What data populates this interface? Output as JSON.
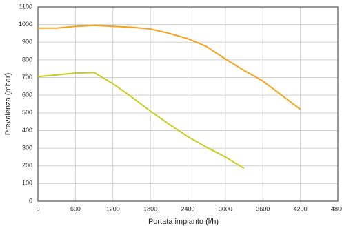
{
  "chart_data": {
    "type": "line",
    "x_label": "Portata impianto (l/h)",
    "y_label": "Prevalenza (mbar)",
    "x": [
      0,
      300,
      600,
      900,
      1200,
      1500,
      1800,
      2100,
      2400,
      2700,
      3000,
      3300,
      3600,
      3900,
      4200
    ],
    "series": [
      {
        "color": "#f7a21b",
        "values": [
          980,
          980,
          990,
          995,
          990,
          985,
          975,
          950,
          920,
          875,
          805,
          740,
          680,
          600,
          520
        ]
      },
      {
        "color": "#c9cc1c",
        "values": [
          705,
          715,
          725,
          728,
          665,
          590,
          510,
          435,
          365,
          305,
          250,
          185,
          null,
          null,
          null
        ]
      }
    ],
    "xlim": [
      0,
      4800
    ],
    "xticks": [
      0,
      600,
      1200,
      1800,
      2400,
      3000,
      3600,
      4200,
      4800
    ],
    "ylim": [
      0,
      1100
    ],
    "yticks": [
      0,
      100,
      200,
      300,
      400,
      500,
      600,
      700,
      800,
      900,
      1000,
      1100
    ],
    "grid": true
  }
}
